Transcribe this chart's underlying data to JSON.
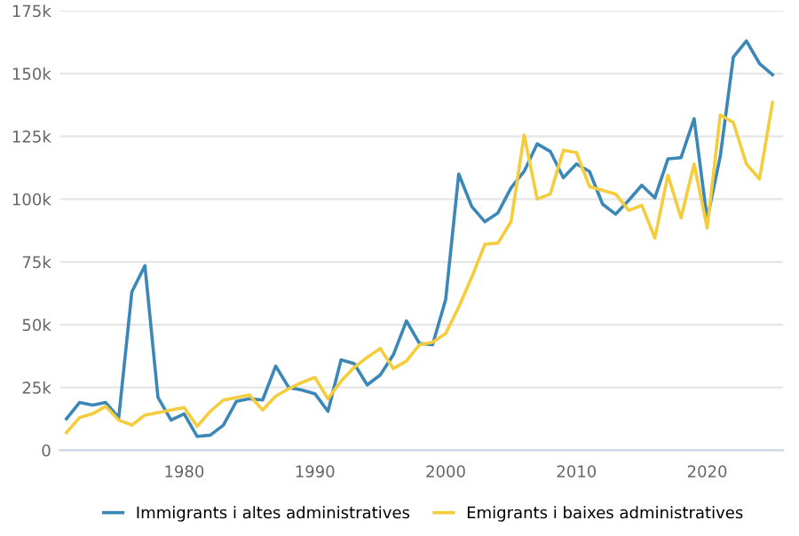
{
  "chart_data": {
    "type": "line",
    "x": [
      1971,
      1972,
      1973,
      1974,
      1975,
      1976,
      1977,
      1978,
      1979,
      1980,
      1981,
      1982,
      1983,
      1984,
      1985,
      1986,
      1987,
      1988,
      1989,
      1990,
      1991,
      1992,
      1993,
      1994,
      1995,
      1996,
      1997,
      1998,
      1999,
      2000,
      2001,
      2002,
      2003,
      2004,
      2005,
      2006,
      2007,
      2008,
      2009,
      2010,
      2011,
      2012,
      2013,
      2014,
      2015,
      2016,
      2017,
      2018,
      2019,
      2020,
      2021,
      2022,
      2023,
      2024,
      2025
    ],
    "series": [
      {
        "name": "Immigrants i altes administratives",
        "color": "#3a87b8",
        "values": [
          12500,
          19000,
          18000,
          19000,
          13000,
          63000,
          73500,
          21000,
          12000,
          14500,
          5500,
          6000,
          10000,
          19500,
          20500,
          20000,
          33500,
          25000,
          24000,
          22500,
          15500,
          36000,
          34500,
          26000,
          30000,
          38000,
          51500,
          42500,
          42000,
          60000,
          110000,
          97000,
          91000,
          94500,
          104500,
          111000,
          122000,
          119000,
          108500,
          114000,
          111000,
          98000,
          94000,
          99500,
          105500,
          100500,
          116000,
          116500,
          132000,
          92000,
          117000,
          156500,
          163000,
          154000,
          149500
        ]
      },
      {
        "name": "Emigrants i baixes administratives",
        "color": "#f4cc3c",
        "values": [
          7000,
          13000,
          14500,
          17500,
          12000,
          10000,
          14000,
          15000,
          16000,
          17000,
          9500,
          15500,
          20000,
          21000,
          22000,
          16000,
          21500,
          24500,
          27000,
          29000,
          20500,
          27500,
          33000,
          37000,
          40500,
          32500,
          35500,
          42000,
          43000,
          46500,
          57000,
          69000,
          82000,
          82500,
          91000,
          125500,
          100000,
          102000,
          119500,
          118500,
          105000,
          103500,
          102000,
          95500,
          97500,
          84500,
          109500,
          92500,
          114000,
          88500,
          133500,
          130500,
          114000,
          108000,
          138500
        ]
      }
    ],
    "xlim": [
      1970.5,
      2025.8
    ],
    "xticks": [
      1980,
      1990,
      2000,
      2010,
      2020
    ],
    "ylim": [
      0,
      175000
    ],
    "yticks": [
      {
        "value": 0,
        "label": "0"
      },
      {
        "value": 25000,
        "label": "25k"
      },
      {
        "value": 50000,
        "label": "50k"
      },
      {
        "value": 75000,
        "label": "75k"
      },
      {
        "value": 100000,
        "label": "100k"
      },
      {
        "value": 125000,
        "label": "125k"
      },
      {
        "value": 150000,
        "label": "150k"
      },
      {
        "value": 175000,
        "label": "175k"
      }
    ],
    "grid": "y",
    "legend": "bottom",
    "marker": "none",
    "line_style": "solid"
  }
}
